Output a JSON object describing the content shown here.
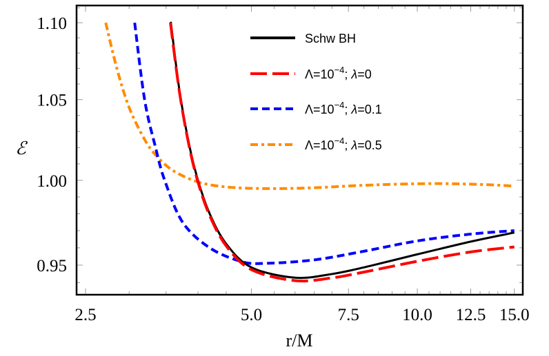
{
  "chart_data": {
    "type": "line",
    "title": "",
    "xlabel": "r/M",
    "ylabel": "ℰ",
    "xscale": "log",
    "yscale": "log",
    "xlim": [
      2.41,
      15.5
    ],
    "ylim": [
      0.933,
      1.111
    ],
    "grid": false,
    "legend_placement": "top-right",
    "xticks": [
      "2.5",
      "5.0",
      "7.5",
      "10.0",
      "12.5",
      "15.0"
    ],
    "xtick_values": [
      2.5,
      5.0,
      7.5,
      10.0,
      12.5,
      15.0
    ],
    "yticks": [
      "0.95",
      "1.00",
      "1.05",
      "1.10"
    ],
    "ytick_values": [
      0.95,
      1.0,
      1.05,
      1.1
    ],
    "series": [
      {
        "name": "Schw BH",
        "legend": {
          "text": "Schw BH"
        },
        "color": "#000000",
        "style": "solid",
        "x": [
          3.57,
          3.7,
          3.85,
          4.0,
          4.2,
          4.5,
          5.0,
          6.0,
          7.0,
          8.0,
          10.0,
          12.5,
          15.0
        ],
        "y": [
          1.1006,
          1.0563,
          1.0227,
          1.0,
          0.98,
          0.9623,
          0.9487,
          0.9428,
          0.9449,
          0.9487,
          0.9562,
          0.9636,
          0.9689
        ]
      },
      {
        "name": "Λ=10^−4; λ=0",
        "legend": {
          "base": "Λ=10",
          "exp": "−4",
          "sep": "; ",
          "lam": "λ",
          "val": "=0"
        },
        "color": "#ff0000",
        "style": "long-dash",
        "x": [
          3.565,
          3.7,
          3.85,
          4.0,
          4.2,
          4.5,
          5.0,
          6.0,
          7.0,
          8.0,
          10.0,
          12.5,
          15.0
        ],
        "y": [
          1.1,
          1.0553,
          1.0217,
          0.9989,
          0.9789,
          0.9611,
          0.9474,
          0.9411,
          0.9427,
          0.946,
          0.9522,
          0.9576,
          0.9605
        ]
      },
      {
        "name": "Λ=10^−4; λ=0.1",
        "legend": {
          "base": "Λ=10",
          "exp": "−4",
          "sep": "; ",
          "lam": "λ",
          "val": "=0.1"
        },
        "color": "#0000ff",
        "style": "dash",
        "x": [
          3.07,
          3.2,
          3.35,
          3.48,
          3.75,
          4.2,
          4.8,
          5.3,
          6.5,
          8.0,
          10.0,
          12.5,
          15.0
        ],
        "y": [
          1.1,
          1.05,
          1.02,
          1.0,
          0.975,
          0.96,
          0.952,
          0.951,
          0.953,
          0.958,
          0.964,
          0.968,
          0.97
        ]
      },
      {
        "name": "Λ=10^−4; λ=0.5",
        "legend": {
          "base": "Λ=10",
          "exp": "−4",
          "sep": "; ",
          "lam": "λ",
          "val": "=0.5"
        },
        "color": "#ff8c00",
        "style": "dash-dot",
        "x": [
          2.72,
          2.85,
          3.0,
          3.2,
          3.36,
          3.6,
          4.0,
          4.5,
          5.3,
          6.5,
          8.0,
          10.5,
          13.0,
          15.0
        ],
        "y": [
          1.1,
          1.07,
          1.045,
          1.025,
          1.015,
          1.006,
          0.999,
          0.996,
          0.995,
          0.9955,
          0.997,
          0.998,
          0.9975,
          0.9965
        ]
      }
    ]
  }
}
